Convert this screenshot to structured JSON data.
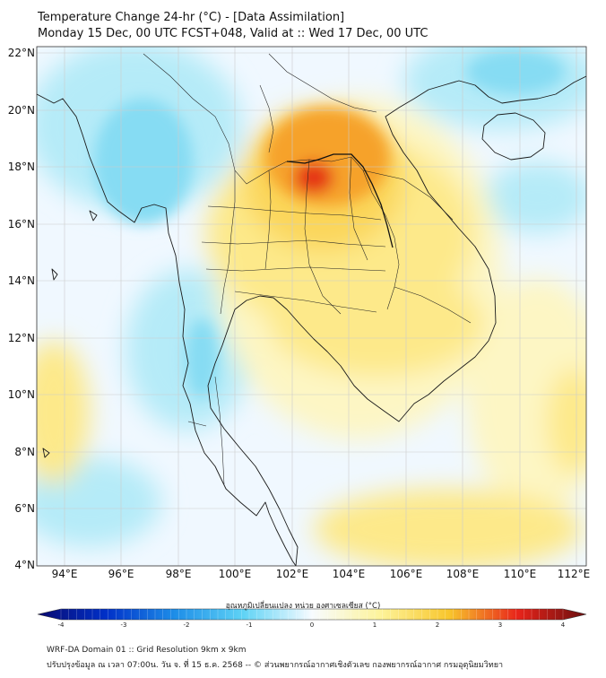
{
  "header": {
    "title_line1": "Temperature Change 24-hr (°C) - [Data Assimilation]",
    "title_line2": "Monday 15 Dec, 00 UTC FCST+048, Valid at :: Wed 17 Dec, 00 UTC"
  },
  "axes": {
    "lat_labels": [
      "22°N",
      "20°N",
      "18°N",
      "16°N",
      "14°N",
      "12°N",
      "10°N",
      "8°N",
      "6°N",
      "4°N"
    ],
    "lon_labels": [
      "94°E",
      "96°E",
      "98°E",
      "100°E",
      "102°E",
      "104°E",
      "106°E",
      "108°E",
      "110°E",
      "112°E"
    ]
  },
  "colorbar": {
    "label": "อุณหภูมิเปลี่ยนแปลง หน่วย องศาเซลเซียส (°C)",
    "ticks": [
      "-4",
      "-3",
      "-2",
      "-1",
      "0",
      "1",
      "2",
      "3",
      "4"
    ],
    "range": [
      -4,
      4
    ],
    "colors": {
      "c_m4": "#0a0a70",
      "c_m3": "#0030c8",
      "c_m2": "#1e8ee8",
      "c_m1": "#5fd3f5",
      "c_0": "#f7fbff",
      "c_p1": "#fdf39a",
      "c_p2": "#f8c62c",
      "c_p3": "#e8241a",
      "c_p4": "#6a0f0f"
    }
  },
  "field_colors": {
    "background": "#f0f8ff",
    "cyan": "#b5ebf8",
    "cyan_strong": "#86dcf3",
    "pale_yellow": "#fdf6c4",
    "yellow": "#fde98a",
    "yellow_strong": "#fbd65a",
    "orange": "#f6a22a",
    "red": "#e53516"
  },
  "footer": {
    "line1": "WRF-DA Domain 01 :: Grid Resolution 9km x 9km",
    "line2": "ปรับปรุงข้อมูล ณ เวลา 07:00น. วัน จ. ที่ 15 ธ.ค. 2568 -- © ส่วนพยากรณ์อากาศเชิงตัวเลข กองพยากรณ์อากาศ กรมอุตุนิยมวิทยา"
  }
}
